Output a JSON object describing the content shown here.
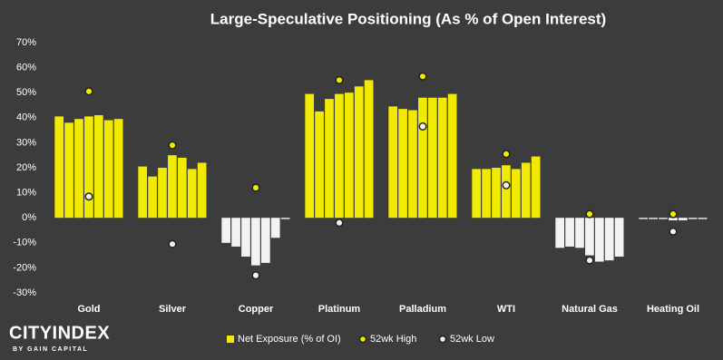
{
  "chart_data": {
    "type": "grouped-bar-range",
    "title": "Large-Speculative Positioning (As % of Open Interest)",
    "categories": [
      "Gold",
      "Silver",
      "Copper",
      "Platinum",
      "Palladium",
      "WTI",
      "Natural Gas",
      "Heating Oil"
    ],
    "series": [
      {
        "name": "Net Exposure (% of OI)",
        "color": "#f2ea00",
        "negative_color": "#f2f2f2",
        "values": [
          [
            40.5,
            38,
            39.5,
            40.5,
            41,
            39,
            39.5
          ],
          [
            20.5,
            16.5,
            20,
            25,
            24,
            19.5,
            22
          ],
          [
            -10,
            -11.5,
            -15.5,
            -19,
            -18,
            -8,
            -0.5
          ],
          [
            49.5,
            42.5,
            47.5,
            49.5,
            50,
            52.5,
            55
          ],
          [
            44.5,
            43.5,
            43,
            48,
            48,
            48,
            49.5
          ],
          [
            19.5,
            19.5,
            20,
            21,
            19.5,
            22,
            24.5
          ],
          [
            -12,
            -11.5,
            -12,
            -15,
            -17.5,
            -17,
            -15.5
          ],
          [
            -0.5,
            -0.5,
            -0.5,
            -1,
            -1,
            -0.5,
            -0.5
          ]
        ]
      },
      {
        "name": "52wk High",
        "color": "#f2ea00",
        "values": [
          50.5,
          29,
          12,
          55,
          56.5,
          25.5,
          1.5,
          1.5
        ]
      },
      {
        "name": "52wk Low",
        "color": "#f2f2f2",
        "values": [
          8.5,
          -10.5,
          -23,
          -2,
          36.5,
          13,
          -17,
          -5.5
        ]
      }
    ],
    "ylim": [
      -30,
      70
    ],
    "yticks": [
      {
        "value": -30,
        "label": "-30%"
      },
      {
        "value": -20,
        "label": "-20%"
      },
      {
        "value": -10,
        "label": "-10%"
      },
      {
        "value": 0,
        "label": "0%"
      },
      {
        "value": 10,
        "label": "10%"
      },
      {
        "value": 20,
        "label": "20%"
      },
      {
        "value": 30,
        "label": "30%"
      },
      {
        "value": 40,
        "label": "40%"
      },
      {
        "value": 50,
        "label": "50%"
      },
      {
        "value": 60,
        "label": "60%"
      },
      {
        "value": 70,
        "label": "70%"
      }
    ],
    "grid": false
  },
  "branding": {
    "name": "CITYINDEX",
    "tagline": "BY GAIN CAPITAL"
  }
}
